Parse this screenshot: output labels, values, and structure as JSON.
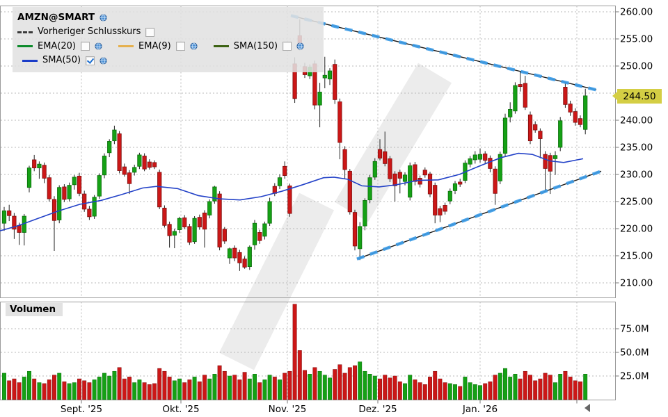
{
  "legend": {
    "title": "AMZN@SMART",
    "items": [
      {
        "id": "prev_close",
        "label": "Vorheriger Schlusskurs",
        "style": "dashed",
        "color": "#3a3a3a",
        "checked": false,
        "globe": false
      },
      {
        "id": "ema20",
        "label": "EMA(20)",
        "style": "solid",
        "color": "#0c8a2a",
        "checked": false,
        "globe": true
      },
      {
        "id": "ema9",
        "label": "EMA(9)",
        "style": "solid",
        "color": "#e5b04e",
        "checked": false,
        "globe": true
      },
      {
        "id": "sma150",
        "label": "SMA(150)",
        "style": "solid",
        "color": "#3c6212",
        "checked": false,
        "globe": true
      },
      {
        "id": "sma50",
        "label": "SMA(50)",
        "style": "solid",
        "color": "#1b3cc8",
        "checked": true,
        "globe": true
      }
    ]
  },
  "volume_panel": {
    "label": "Volumen"
  },
  "price_tag": "244.50",
  "axis": {
    "price_ticks": [
      {
        "p": 260,
        "label": "260.00"
      },
      {
        "p": 255,
        "label": "255.00"
      },
      {
        "p": 250,
        "label": "250.00"
      },
      {
        "p": 245,
        "label": ""
      },
      {
        "p": 240,
        "label": "240.00"
      },
      {
        "p": 235,
        "label": "235.00"
      },
      {
        "p": 230,
        "label": "230.00"
      },
      {
        "p": 225,
        "label": "225.00"
      },
      {
        "p": 220,
        "label": "220.00"
      },
      {
        "p": 215,
        "label": "215.00"
      },
      {
        "p": 210,
        "label": "210.00"
      }
    ],
    "volume_ticks": [
      {
        "v": 75,
        "label": "75.0M"
      },
      {
        "v": 50,
        "label": "50.0M"
      },
      {
        "v": 25,
        "label": "25.0M"
      }
    ],
    "months": [
      {
        "x": 117,
        "label": "Sept. '25"
      },
      {
        "x": 260,
        "label": "Okt. '25"
      },
      {
        "x": 413,
        "label": "Nov. '25"
      },
      {
        "x": 543,
        "label": "Dez. '25"
      },
      {
        "x": 690,
        "label": "Jan. '26"
      },
      {
        "x": 829,
        "label": ""
      }
    ]
  },
  "chart_data": {
    "type": "candlestick",
    "symbol": "AMZN@SMART",
    "last_price": 244.5,
    "ylim": [
      207,
      261.5
    ],
    "volume_unit": "M",
    "colors": {
      "up": "#15a115",
      "up_stroke": "#0b6d0b",
      "down": "#cc1717",
      "down_stroke": "#7e0d0d",
      "sma50": "#2342c8",
      "trend_dash": "#3d9de8",
      "trend_base": "#1a1a1a"
    },
    "candles": [
      [
        221.0,
        224.0,
        219.6,
        223.3,
        28
      ],
      [
        223.3,
        224.4,
        221.4,
        222.4,
        20
      ],
      [
        222.3,
        222.9,
        218.1,
        219.9,
        22
      ],
      [
        220.6,
        221.1,
        217.0,
        219.3,
        18
      ],
      [
        219.3,
        222.7,
        216.9,
        222.3,
        24
      ],
      [
        227.6,
        231.6,
        226.7,
        231.2,
        30
      ],
      [
        232.7,
        233.6,
        230.6,
        231.2,
        22
      ],
      [
        231.2,
        232.4,
        229.2,
        231.9,
        18
      ],
      [
        231.7,
        232.2,
        228.4,
        229.3,
        17
      ],
      [
        229.4,
        229.9,
        225.0,
        225.5,
        21
      ],
      [
        225.4,
        226.0,
        215.9,
        221.5,
        26
      ],
      [
        221.6,
        228.0,
        221.0,
        227.6,
        28
      ],
      [
        227.7,
        228.2,
        224.9,
        225.4,
        19
      ],
      [
        225.5,
        228.5,
        225.0,
        228.0,
        17
      ],
      [
        228.1,
        229.9,
        227.2,
        229.5,
        18
      ],
      [
        229.7,
        230.3,
        226.0,
        226.5,
        22
      ],
      [
        226.4,
        227.0,
        223.1,
        223.6,
        20
      ],
      [
        223.6,
        224.2,
        221.6,
        222.2,
        18
      ],
      [
        222.3,
        226.2,
        221.8,
        225.8,
        21
      ],
      [
        226.0,
        230.2,
        225.5,
        229.8,
        24
      ],
      [
        229.9,
        233.9,
        229.3,
        233.4,
        28
      ],
      [
        234.0,
        236.5,
        233.2,
        236.1,
        25
      ],
      [
        236.2,
        239.0,
        235.6,
        238.2,
        30
      ],
      [
        237.5,
        238.0,
        230.2,
        230.7,
        34
      ],
      [
        231.4,
        232.0,
        229.6,
        230.0,
        22
      ],
      [
        230.3,
        230.8,
        226.4,
        228.3,
        24
      ],
      [
        230.4,
        231.8,
        229.8,
        231.3,
        18
      ],
      [
        231.5,
        234.0,
        231.0,
        233.6,
        21
      ],
      [
        233.4,
        233.9,
        230.6,
        231.0,
        18
      ],
      [
        232.3,
        232.8,
        230.9,
        231.3,
        16
      ],
      [
        232.2,
        232.6,
        231.0,
        231.4,
        17
      ],
      [
        230.4,
        230.9,
        223.6,
        224.0,
        33
      ],
      [
        223.8,
        224.3,
        220.2,
        220.6,
        30
      ],
      [
        220.8,
        221.3,
        216.5,
        218.7,
        24
      ],
      [
        218.8,
        220.0,
        216.4,
        219.5,
        20
      ],
      [
        219.8,
        222.2,
        219.2,
        221.9,
        22
      ],
      [
        222.0,
        222.5,
        219.9,
        220.3,
        18
      ],
      [
        220.4,
        220.9,
        217.0,
        217.5,
        21
      ],
      [
        217.6,
        222.3,
        217.2,
        221.9,
        24
      ],
      [
        222.1,
        222.6,
        219.8,
        220.3,
        19
      ],
      [
        222.9,
        223.4,
        216.5,
        219.9,
        26
      ],
      [
        222.5,
        225.4,
        221.9,
        225.0,
        22
      ],
      [
        225.1,
        227.9,
        224.6,
        227.7,
        27
      ],
      [
        226.4,
        226.9,
        216.0,
        216.6,
        36
      ],
      [
        219.9,
        220.3,
        217.2,
        217.7,
        30
      ],
      [
        214.6,
        216.5,
        213.5,
        216.3,
        25
      ],
      [
        216.4,
        216.9,
        214.0,
        214.6,
        26
      ],
      [
        215.6,
        216.1,
        212.2,
        213.7,
        21
      ],
      [
        214.4,
        214.9,
        212.6,
        212.9,
        29
      ],
      [
        213.0,
        216.9,
        212.4,
        216.6,
        22
      ],
      [
        217.0,
        221.6,
        216.1,
        221.0,
        27
      ],
      [
        219.3,
        219.8,
        217.2,
        217.8,
        18
      ],
      [
        218.6,
        221.3,
        218.0,
        220.9,
        21
      ],
      [
        221.0,
        225.7,
        220.5,
        225.0,
        26
      ],
      [
        227.8,
        228.4,
        226.0,
        226.5,
        24
      ],
      [
        227.9,
        230.0,
        227.3,
        229.4,
        21
      ],
      [
        231.5,
        232.4,
        229.2,
        229.8,
        28
      ],
      [
        227.9,
        228.3,
        222.2,
        222.8,
        30
      ],
      [
        250.4,
        251.6,
        243.2,
        244.0,
        101
      ],
      [
        255.6,
        258.6,
        252.9,
        253.7,
        52
      ],
      [
        249.9,
        250.6,
        247.8,
        248.4,
        31
      ],
      [
        248.2,
        250.3,
        247.6,
        249.8,
        27
      ],
      [
        250.4,
        251.0,
        242.0,
        242.8,
        34
      ],
      [
        242.8,
        246.9,
        238.7,
        245.2,
        30
      ],
      [
        247.8,
        251.7,
        245.9,
        248.3,
        26
      ],
      [
        247.6,
        249.6,
        246.5,
        249.1,
        23
      ],
      [
        250.3,
        251.2,
        243.0,
        243.8,
        32
      ],
      [
        243.4,
        244.0,
        232.8,
        235.9,
        37
      ],
      [
        234.6,
        235.2,
        229.3,
        230.9,
        28
      ],
      [
        230.6,
        231.0,
        222.6,
        223.1,
        34
      ],
      [
        223.0,
        223.5,
        216.0,
        216.8,
        36
      ],
      [
        216.3,
        221.2,
        214.2,
        220.4,
        40
      ],
      [
        220.5,
        225.6,
        219.7,
        225.2,
        30
      ],
      [
        225.3,
        229.9,
        224.7,
        229.4,
        27
      ],
      [
        229.5,
        233.0,
        229.0,
        232.4,
        25
      ],
      [
        234.6,
        236.5,
        232.6,
        233.0,
        22
      ],
      [
        234.2,
        237.9,
        231.5,
        232.0,
        26
      ],
      [
        232.9,
        233.4,
        228.6,
        229.2,
        23
      ],
      [
        230.1,
        230.6,
        225.0,
        227.9,
        25
      ],
      [
        230.4,
        230.9,
        226.5,
        229.3,
        19
      ],
      [
        228.7,
        230.4,
        228.0,
        229.9,
        17
      ],
      [
        225.8,
        232.2,
        225.2,
        231.6,
        26
      ],
      [
        231.8,
        232.3,
        228.0,
        228.7,
        21
      ],
      [
        229.3,
        229.8,
        227.6,
        228.2,
        18
      ],
      [
        230.8,
        231.3,
        229.4,
        229.9,
        16
      ],
      [
        230.1,
        230.5,
        225.8,
        226.4,
        24
      ],
      [
        228.0,
        228.5,
        221.0,
        222.5,
        30
      ],
      [
        223.7,
        224.2,
        221.2,
        222.5,
        22
      ],
      [
        224.3,
        224.8,
        222.6,
        223.2,
        18
      ],
      [
        225.1,
        227.4,
        224.5,
        226.9,
        17
      ],
      [
        227.0,
        228.8,
        226.4,
        228.3,
        16
      ],
      [
        228.6,
        229.2,
        227.7,
        228.2,
        14
      ],
      [
        228.9,
        232.6,
        228.4,
        232.1,
        24
      ],
      [
        231.9,
        233.4,
        231.3,
        232.9,
        18
      ],
      [
        232.7,
        234.3,
        232.0,
        233.6,
        16
      ],
      [
        232.8,
        234.8,
        232.2,
        233.7,
        15
      ],
      [
        233.8,
        234.3,
        232.0,
        232.6,
        17
      ],
      [
        233.0,
        233.5,
        230.4,
        231.1,
        19
      ],
      [
        231.0,
        231.5,
        224.4,
        226.5,
        26
      ],
      [
        228.8,
        234.2,
        228.2,
        233.7,
        28
      ],
      [
        233.9,
        241.2,
        233.4,
        240.4,
        33
      ],
      [
        240.6,
        243.3,
        239.6,
        242.0,
        24
      ],
      [
        241.7,
        247.0,
        241.2,
        246.4,
        27
      ],
      [
        246.6,
        249.0,
        245.3,
        246.2,
        22
      ],
      [
        246.8,
        248.2,
        241.9,
        242.4,
        30
      ],
      [
        241.0,
        241.6,
        235.6,
        236.2,
        26
      ],
      [
        239.2,
        239.8,
        237.7,
        238.2,
        20
      ],
      [
        238.0,
        238.5,
        233.0,
        236.6,
        22
      ],
      [
        233.7,
        234.3,
        226.7,
        231.1,
        28
      ],
      [
        233.5,
        234.0,
        226.4,
        230.6,
        26
      ],
      [
        232.9,
        234.3,
        229.9,
        233.5,
        18
      ],
      [
        235.0,
        240.6,
        234.3,
        239.9,
        27
      ],
      [
        246.1,
        246.9,
        242.3,
        242.9,
        30
      ],
      [
        243.0,
        243.6,
        240.8,
        241.5,
        24
      ],
      [
        241.6,
        242.2,
        239.0,
        239.6,
        20
      ],
      [
        240.3,
        240.9,
        238.7,
        239.2,
        19
      ],
      [
        238.3,
        245.8,
        237.4,
        244.5,
        27
      ]
    ],
    "sma50": [
      [
        0,
        219.6
      ],
      [
        25,
        220.5
      ],
      [
        55,
        221.9
      ],
      [
        85,
        223.3
      ],
      [
        115,
        224.5
      ],
      [
        145,
        225.2
      ],
      [
        175,
        226.3
      ],
      [
        205,
        227.5
      ],
      [
        225,
        227.8
      ],
      [
        255,
        227.4
      ],
      [
        285,
        226.1
      ],
      [
        315,
        225.5
      ],
      [
        345,
        225.3
      ],
      [
        375,
        225.9
      ],
      [
        405,
        226.9
      ],
      [
        435,
        228.1
      ],
      [
        465,
        229.4
      ],
      [
        480,
        229.5
      ],
      [
        500,
        229.1
      ],
      [
        520,
        227.9
      ],
      [
        545,
        227.7
      ],
      [
        570,
        228.1
      ],
      [
        600,
        228.9
      ],
      [
        630,
        229.0
      ],
      [
        660,
        230.0
      ],
      [
        690,
        231.6
      ],
      [
        720,
        233.1
      ],
      [
        745,
        233.9
      ],
      [
        765,
        233.7
      ],
      [
        790,
        232.5
      ],
      [
        810,
        232.2
      ],
      [
        838,
        232.9
      ]
    ],
    "trendlines": [
      {
        "x1": 418,
        "p1": 259.3,
        "x2": 857,
        "p2": 245.6
      },
      {
        "x1": 513,
        "p1": 214.4,
        "x2": 864,
        "p2": 230.6
      }
    ]
  }
}
